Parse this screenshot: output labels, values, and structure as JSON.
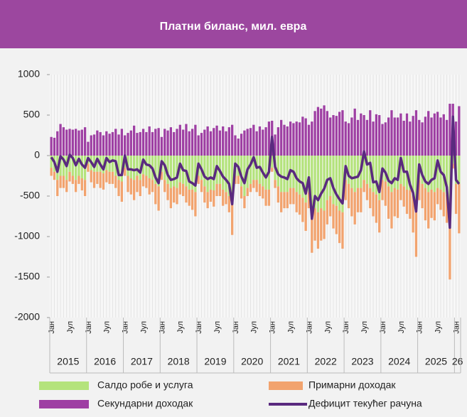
{
  "chart_data": {
    "type": "bar",
    "title": "Платни биланс, мил. евра",
    "categories": [
      "Јан",
      null,
      null,
      null,
      null,
      null,
      "Јул",
      null,
      null,
      null,
      null,
      null,
      "Јан",
      null,
      null,
      null,
      null,
      null,
      "Јул",
      null,
      null,
      null,
      null,
      null,
      "Јан",
      null,
      null,
      null,
      null,
      null,
      "Јул",
      null,
      null,
      null,
      null,
      null,
      "Јан",
      null,
      null,
      null,
      null,
      null,
      "Јул",
      null,
      null,
      null,
      null,
      null,
      "Јан",
      null,
      null,
      null,
      null,
      null,
      "Јул",
      null,
      null,
      null,
      null,
      null,
      "Јан",
      null,
      null,
      null,
      null,
      null,
      "Јул",
      null,
      null,
      null,
      null,
      null,
      "Јан",
      null,
      null,
      null,
      null,
      null,
      "Јул",
      null,
      null,
      null,
      null,
      null,
      "Јан",
      null,
      null,
      null,
      null,
      null,
      "Јул",
      null,
      null,
      null,
      null,
      null,
      "Јан",
      null,
      null,
      null,
      null,
      null,
      "Јул",
      null,
      null,
      null,
      null,
      null,
      "Јан",
      null,
      null,
      null,
      null,
      null,
      "Јул",
      null,
      null,
      null,
      null,
      null,
      "Јан",
      null,
      null,
      null,
      null,
      null,
      "Јул",
      null,
      null,
      null,
      null,
      null,
      "Јан",
      null
    ],
    "year_labels": [
      "2015",
      "2016",
      "2017",
      "2018",
      "2019",
      "2020",
      "2021",
      "2022",
      "2023",
      "2024",
      "2025",
      "26"
    ],
    "ylim": [
      -2000,
      1000
    ],
    "yticks": [
      -2000,
      -1500,
      -1000,
      -500,
      0,
      500,
      1000
    ],
    "legend": "bottom",
    "series": [
      {
        "name": "Салдо робе и услуга",
        "type": "bar",
        "color": "#b4e37c",
        "values": [
          -150,
          -200,
          -300,
          -250,
          -250,
          -300,
          -200,
          -250,
          -300,
          -250,
          -280,
          -300,
          -100,
          -180,
          -200,
          -200,
          -200,
          -220,
          -180,
          -200,
          -200,
          -250,
          -300,
          -320,
          -150,
          -250,
          -280,
          -300,
          -250,
          -300,
          -230,
          -250,
          -280,
          -300,
          -350,
          -380,
          -200,
          -300,
          -350,
          -400,
          -380,
          -400,
          -330,
          -350,
          -380,
          -420,
          -420,
          -450,
          -250,
          -300,
          -380,
          -450,
          -420,
          -430,
          -350,
          -350,
          -420,
          -450,
          -500,
          -580,
          -250,
          -250,
          -380,
          -500,
          -400,
          -350,
          -300,
          -300,
          -350,
          -380,
          -420,
          -420,
          -150,
          -300,
          -380,
          -450,
          -450,
          -450,
          -400,
          -400,
          -450,
          -480,
          -520,
          -580,
          -450,
          -700,
          -650,
          -700,
          -650,
          -680,
          -550,
          -500,
          -600,
          -620,
          -680,
          -700,
          -300,
          -350,
          -400,
          -450,
          -400,
          -400,
          -300,
          -350,
          -400,
          -450,
          -480,
          -550,
          -300,
          -320,
          -380,
          -450,
          -400,
          -420,
          -350,
          -380,
          -420,
          -430,
          -500,
          -550,
          -300,
          -350,
          -400,
          -450,
          -420,
          -450,
          -400,
          -420,
          -450,
          -480,
          -630,
          -100,
          -350,
          -350
        ]
      },
      {
        "name": "Примарни доходак",
        "type": "bar",
        "color": "#f2a36e",
        "values": [
          -100,
          -100,
          -200,
          -150,
          -150,
          -150,
          -120,
          -100,
          -150,
          -100,
          -150,
          -200,
          -100,
          -150,
          -200,
          -150,
          -200,
          -200,
          -150,
          -150,
          -150,
          -150,
          -200,
          -250,
          -100,
          -200,
          -200,
          -250,
          -200,
          -200,
          -150,
          -150,
          -200,
          -150,
          -250,
          -300,
          -100,
          -150,
          -200,
          -250,
          -200,
          -200,
          -150,
          -150,
          -200,
          -200,
          -250,
          -300,
          -100,
          -150,
          -200,
          -200,
          -150,
          -200,
          -150,
          -150,
          -200,
          -150,
          -200,
          -400,
          -100,
          -100,
          -150,
          -150,
          -100,
          -100,
          -100,
          -150,
          -150,
          -150,
          -200,
          -200,
          -50,
          -100,
          -200,
          -250,
          -200,
          -200,
          -200,
          -200,
          -250,
          -250,
          -300,
          -350,
          -200,
          -500,
          -400,
          -450,
          -400,
          -350,
          -300,
          -250,
          -300,
          -350,
          -400,
          -450,
          -250,
          -300,
          -350,
          -400,
          -300,
          -300,
          -150,
          -200,
          -250,
          -300,
          -350,
          -400,
          -250,
          -300,
          -400,
          -450,
          -350,
          -350,
          -200,
          -250,
          -300,
          -350,
          -450,
          -700,
          -250,
          -300,
          -400,
          -450,
          -350,
          -350,
          -200,
          -250,
          -300,
          -350,
          -900,
          -60,
          -370,
          -610
        ]
      },
      {
        "name": "Секундарни доходак",
        "type": "bar",
        "color": "#9e3fa3",
        "values": [
          230,
          220,
          300,
          390,
          350,
          320,
          330,
          320,
          330,
          310,
          320,
          350,
          170,
          250,
          260,
          310,
          290,
          250,
          300,
          270,
          290,
          330,
          260,
          330,
          250,
          280,
          310,
          370,
          280,
          290,
          330,
          290,
          360,
          290,
          330,
          340,
          230,
          330,
          310,
          350,
          290,
          330,
          380,
          320,
          390,
          300,
          330,
          380,
          250,
          280,
          320,
          360,
          300,
          340,
          370,
          310,
          360,
          300,
          350,
          380,
          250,
          210,
          270,
          310,
          330,
          340,
          380,
          300,
          360,
          320,
          350,
          420,
          430,
          260,
          350,
          440,
          380,
          360,
          420,
          400,
          420,
          410,
          480,
          460,
          380,
          420,
          550,
          600,
          580,
          620,
          550,
          470,
          500,
          490,
          540,
          560,
          420,
          400,
          470,
          580,
          440,
          520,
          500,
          440,
          560,
          420,
          510,
          500,
          390,
          410,
          470,
          560,
          470,
          470,
          520,
          430,
          520,
          420,
          490,
          560,
          440,
          410,
          480,
          550,
          470,
          520,
          540,
          470,
          510,
          440,
          640,
          640,
          420,
          610
        ]
      },
      {
        "name": "Дефицит текућег рачуна",
        "type": "line",
        "color": "#5a2a7f",
        "values": [
          -20,
          -80,
          -200,
          -10,
          -50,
          -130,
          10,
          -30,
          -120,
          -40,
          -110,
          -150,
          -30,
          -80,
          -140,
          -40,
          -110,
          -170,
          -30,
          -80,
          -60,
          -70,
          -240,
          -240,
          0,
          -170,
          -170,
          -180,
          -170,
          -210,
          -50,
          -110,
          -120,
          -160,
          -270,
          -340,
          -70,
          -120,
          -240,
          -300,
          -290,
          -270,
          -100,
          -180,
          -190,
          -320,
          -340,
          -370,
          -100,
          -170,
          -260,
          -290,
          -270,
          -290,
          -130,
          -190,
          -260,
          -300,
          -350,
          -600,
          -100,
          -140,
          -260,
          -340,
          -170,
          -110,
          -20,
          -150,
          -140,
          -210,
          -270,
          -200,
          230,
          -140,
          -230,
          -260,
          -270,
          -290,
          -180,
          -200,
          -280,
          -320,
          -340,
          -470,
          -270,
          -780,
          -500,
          -550,
          -470,
          -410,
          -300,
          -280,
          -400,
          -480,
          -540,
          -590,
          -130,
          -250,
          -280,
          -270,
          -260,
          -180,
          50,
          -110,
          -90,
          -330,
          -320,
          -450,
          -160,
          -210,
          -310,
          -340,
          -280,
          -300,
          -30,
          -200,
          -200,
          -360,
          -460,
          -690,
          -110,
          -240,
          -320,
          -350,
          -300,
          -280,
          -60,
          -200,
          -240,
          -390,
          -890,
          480,
          -300,
          -350
        ]
      }
    ]
  }
}
